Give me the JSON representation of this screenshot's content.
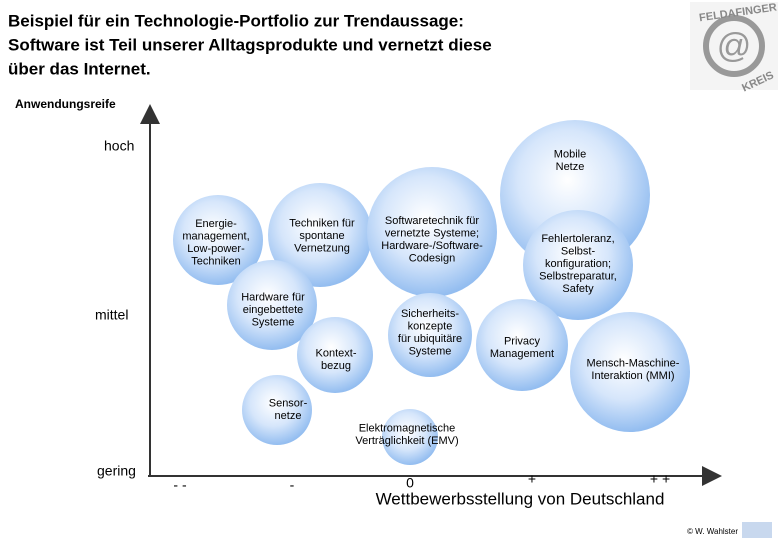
{
  "title": [
    "Beispiel für ein Technologie-Portfolio zur Trendaussage:",
    "Software ist Teil unserer Alltagsprodukte und vernetzt diese",
    "über das Internet."
  ],
  "logo": {
    "top": "FELDAFINGER",
    "bottom": "KREIS",
    "symbol": "@"
  },
  "y_axis": {
    "label": "Anwendungsreife",
    "levels": [
      "hoch",
      "mittel",
      "gering"
    ]
  },
  "x_axis": {
    "label": "Wettbewerbsstellung von Deutschland",
    "levels": [
      "- -",
      "-",
      "0",
      "+",
      "+ +"
    ]
  },
  "nodes": [
    {
      "label": [
        "Mobile",
        "Netze"
      ]
    },
    {
      "label": [
        "Energie-",
        "management,",
        "Low-power-",
        "Techniken"
      ]
    },
    {
      "label": [
        "Techniken für",
        "spontane",
        "Vernetzung"
      ]
    },
    {
      "label": [
        "Softwaretechnik für",
        "vernetzte Systeme;",
        "Hardware-/Software-",
        "Codesign"
      ]
    },
    {
      "label": [
        "Fehlertoleranz,",
        "Selbst-",
        "konfiguration;",
        "Selbstreparatur,",
        "Safety"
      ]
    },
    {
      "label": [
        "Hardware für",
        "eingebettete",
        "Systeme"
      ]
    },
    {
      "label": [
        "Sicherheits-",
        "konzepte",
        "für ubiquitäre",
        "Systeme"
      ]
    },
    {
      "label": [
        "Privacy",
        "Management"
      ]
    },
    {
      "label": [
        "Mensch-Maschine-",
        "Interaktion (MMI)"
      ]
    },
    {
      "label": [
        "Kontext-",
        "bezug"
      ]
    },
    {
      "label": [
        "Sensor-",
        "netze"
      ]
    },
    {
      "label": [
        "Elektromagnetische",
        "Verträglichkeit (EMV)"
      ]
    }
  ],
  "copyright": "© W. Wahlster"
}
